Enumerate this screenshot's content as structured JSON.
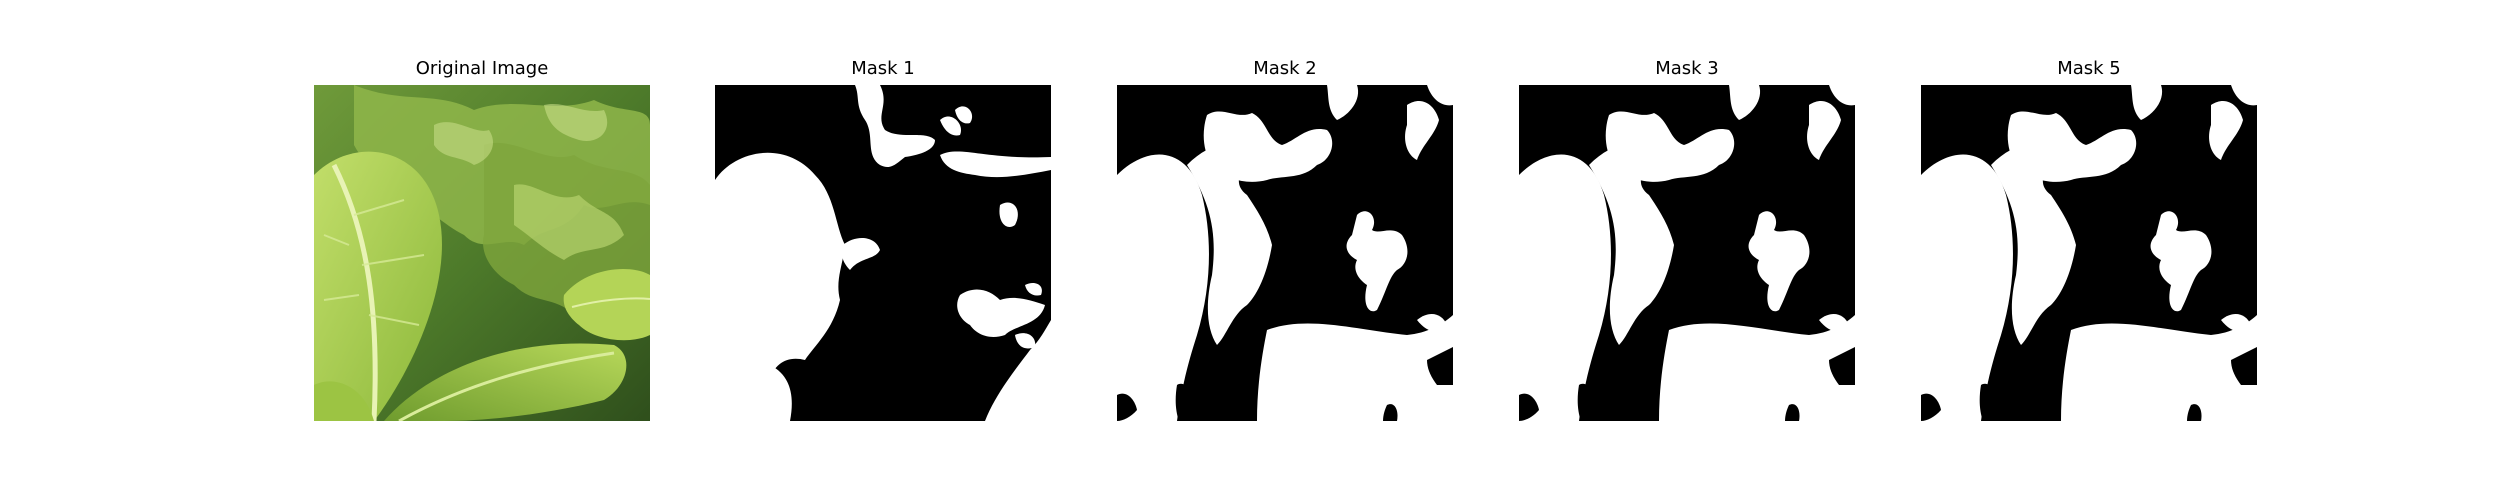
{
  "figure": {
    "panels": [
      {
        "title": "Original Image",
        "kind": "photo",
        "subject": "leaf-photo"
      },
      {
        "title": "Mask 1",
        "kind": "mask"
      },
      {
        "title": "Mask 2",
        "kind": "mask"
      },
      {
        "title": "Mask 3",
        "kind": "mask"
      },
      {
        "title": "Mask 5",
        "kind": "mask"
      }
    ]
  },
  "colors": {
    "background": "#ffffff",
    "mask_fg": "#ffffff",
    "mask_bg": "#000000",
    "leaf_light": "#a9cf4a",
    "leaf_dark": "#3f6b1f"
  }
}
